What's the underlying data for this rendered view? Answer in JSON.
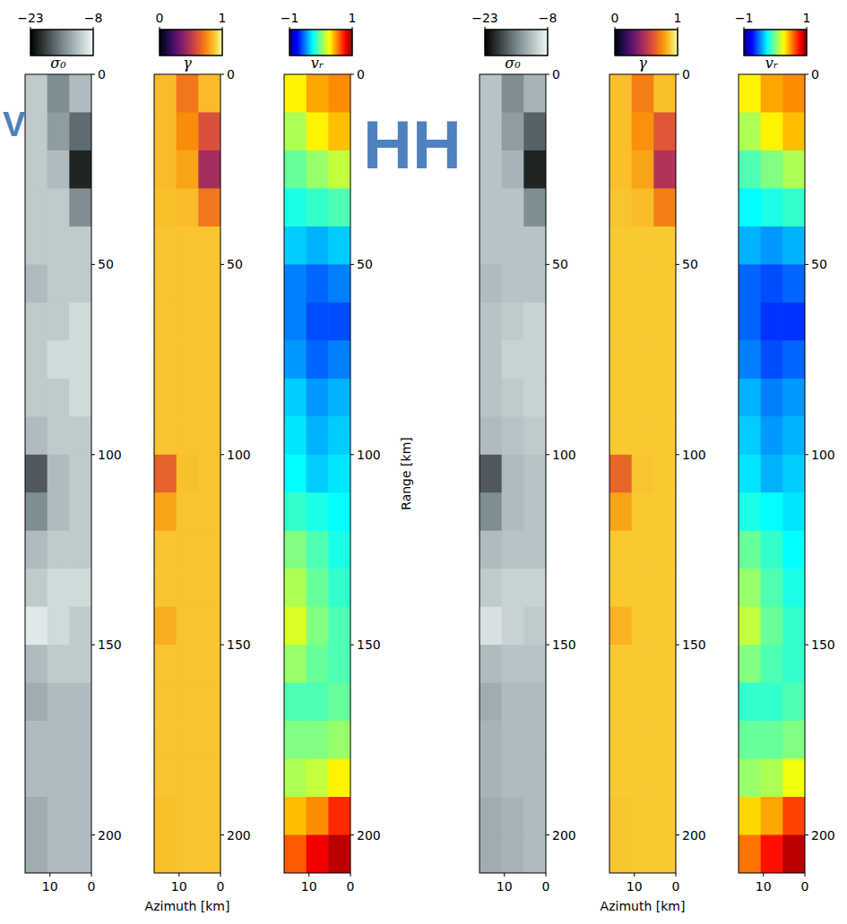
{
  "figure": {
    "groups": [
      {
        "label": "V",
        "x_label": "Azimuth [km]"
      },
      {
        "label": "HH",
        "x_label": "Azimuth [km]"
      }
    ],
    "y_label": "Range [km]"
  },
  "chart_data": [
    {
      "type": "heatmap",
      "title": "σ₀",
      "color": "gray",
      "xlim": [
        16,
        0
      ],
      "ylim": [
        0,
        210
      ],
      "xticks": [
        10,
        0
      ],
      "yticks": [
        0,
        50,
        100,
        150,
        200
      ],
      "colorbar": {
        "range": [
          -23,
          -8
        ],
        "ticks": [
          -23,
          -8
        ]
      },
      "values": [
        [
          -11,
          -15,
          -12
        ],
        [
          -11,
          -14,
          -17
        ],
        [
          -11,
          -12,
          -21
        ],
        [
          -11,
          -11,
          -15
        ],
        [
          -11,
          -11,
          -11
        ],
        [
          -12,
          -11,
          -11
        ],
        [
          -11,
          -11,
          -10
        ],
        [
          -11,
          -10,
          -10
        ],
        [
          -11,
          -11,
          -10
        ],
        [
          -12,
          -11,
          -11
        ],
        [
          -18,
          -12,
          -11
        ],
        [
          -15,
          -12,
          -11
        ],
        [
          -12,
          -11,
          -11
        ],
        [
          -11,
          -10,
          -10
        ],
        [
          -9,
          -10,
          -11
        ],
        [
          -12,
          -11,
          -11
        ],
        [
          -13,
          -12,
          -12
        ],
        [
          -12,
          -12,
          -12
        ],
        [
          -12,
          -12,
          -12
        ],
        [
          -13,
          -12,
          -12
        ],
        [
          -13,
          -12,
          -12
        ]
      ]
    },
    {
      "type": "heatmap",
      "title": "γ",
      "color": "inferno",
      "xlim": [
        16,
        0
      ],
      "ylim": [
        0,
        210
      ],
      "xticks": [
        10,
        0
      ],
      "yticks": [
        0,
        50,
        100,
        150,
        200
      ],
      "colorbar": {
        "range": [
          0,
          1
        ],
        "ticks": [
          0,
          1
        ]
      },
      "values": [
        [
          0.85,
          0.7,
          0.85
        ],
        [
          0.85,
          0.75,
          0.6
        ],
        [
          0.85,
          0.8,
          0.45
        ],
        [
          0.86,
          0.85,
          0.7
        ],
        [
          0.87,
          0.87,
          0.87
        ],
        [
          0.87,
          0.87,
          0.87
        ],
        [
          0.87,
          0.87,
          0.87
        ],
        [
          0.87,
          0.87,
          0.87
        ],
        [
          0.87,
          0.87,
          0.87
        ],
        [
          0.87,
          0.87,
          0.87
        ],
        [
          0.65,
          0.86,
          0.87
        ],
        [
          0.8,
          0.87,
          0.87
        ],
        [
          0.87,
          0.87,
          0.87
        ],
        [
          0.87,
          0.87,
          0.87
        ],
        [
          0.82,
          0.87,
          0.87
        ],
        [
          0.87,
          0.87,
          0.87
        ],
        [
          0.87,
          0.87,
          0.87
        ],
        [
          0.87,
          0.87,
          0.87
        ],
        [
          0.87,
          0.87,
          0.87
        ],
        [
          0.86,
          0.87,
          0.87
        ],
        [
          0.86,
          0.87,
          0.87
        ]
      ]
    },
    {
      "type": "heatmap",
      "title": "vᵣ",
      "color": "jet",
      "xlim": [
        16,
        0
      ],
      "ylim": [
        0,
        210
      ],
      "xticks": [
        10,
        0
      ],
      "yticks": [
        0,
        50,
        100,
        150,
        200
      ],
      "colorbar": {
        "range": [
          -1,
          1
        ],
        "ticks": [
          -1,
          1
        ]
      },
      "values": [
        [
          0.3,
          0.45,
          0.5
        ],
        [
          0.1,
          0.3,
          0.4
        ],
        [
          -0.05,
          0.05,
          0.15
        ],
        [
          -0.2,
          -0.15,
          -0.1
        ],
        [
          -0.35,
          -0.4,
          -0.35
        ],
        [
          -0.5,
          -0.55,
          -0.5
        ],
        [
          -0.5,
          -0.6,
          -0.6
        ],
        [
          -0.45,
          -0.55,
          -0.5
        ],
        [
          -0.35,
          -0.45,
          -0.4
        ],
        [
          -0.3,
          -0.4,
          -0.35
        ],
        [
          -0.25,
          -0.35,
          -0.3
        ],
        [
          -0.15,
          -0.2,
          -0.25
        ],
        [
          0.0,
          -0.1,
          -0.2
        ],
        [
          0.1,
          -0.05,
          -0.15
        ],
        [
          0.2,
          0.0,
          -0.1
        ],
        [
          0.05,
          -0.05,
          -0.1
        ],
        [
          -0.1,
          -0.1,
          -0.05
        ],
        [
          0.0,
          0.0,
          0.05
        ],
        [
          0.1,
          0.15,
          0.3
        ],
        [
          0.4,
          0.5,
          0.7
        ],
        [
          0.6,
          0.8,
          0.9
        ]
      ]
    },
    {
      "type": "heatmap",
      "title": "σ₀",
      "color": "gray",
      "xlim": [
        16,
        0
      ],
      "ylim": [
        0,
        210
      ],
      "xticks": [
        10,
        0
      ],
      "yticks": [
        0,
        50,
        100,
        150,
        200
      ],
      "colorbar": {
        "range": [
          -23,
          -8
        ],
        "ticks": [
          -23,
          -8
        ]
      },
      "values": [
        [
          -11.5,
          -15,
          -12.5
        ],
        [
          -11.5,
          -14,
          -17.5
        ],
        [
          -11.5,
          -12.5,
          -21
        ],
        [
          -11.5,
          -11.5,
          -15
        ],
        [
          -11.5,
          -11.5,
          -11.5
        ],
        [
          -12,
          -11.5,
          -11.5
        ],
        [
          -11.5,
          -11,
          -10.5
        ],
        [
          -11.5,
          -10.5,
          -10.5
        ],
        [
          -11.5,
          -11,
          -10.5
        ],
        [
          -12,
          -11.5,
          -11
        ],
        [
          -18,
          -12,
          -11.5
        ],
        [
          -15,
          -12,
          -11.5
        ],
        [
          -12,
          -11.5,
          -11.5
        ],
        [
          -11,
          -10.5,
          -10.5
        ],
        [
          -9.5,
          -10.5,
          -11
        ],
        [
          -12,
          -11.5,
          -11.5
        ],
        [
          -13,
          -12,
          -12
        ],
        [
          -12.5,
          -12,
          -12
        ],
        [
          -12.5,
          -12,
          -12
        ],
        [
          -13,
          -12.5,
          -12
        ],
        [
          -13,
          -12.5,
          -12
        ]
      ]
    },
    {
      "type": "heatmap",
      "title": "γ",
      "color": "inferno",
      "xlim": [
        16,
        0
      ],
      "ylim": [
        0,
        210
      ],
      "xticks": [
        10,
        0
      ],
      "yticks": [
        0,
        50,
        100,
        150,
        200
      ],
      "colorbar": {
        "range": [
          0,
          1
        ],
        "ticks": [
          0,
          1
        ]
      },
      "values": [
        [
          0.86,
          0.72,
          0.86
        ],
        [
          0.86,
          0.76,
          0.62
        ],
        [
          0.86,
          0.8,
          0.48
        ],
        [
          0.87,
          0.85,
          0.72
        ],
        [
          0.88,
          0.88,
          0.88
        ],
        [
          0.88,
          0.88,
          0.88
        ],
        [
          0.88,
          0.88,
          0.88
        ],
        [
          0.88,
          0.88,
          0.88
        ],
        [
          0.88,
          0.88,
          0.88
        ],
        [
          0.88,
          0.88,
          0.88
        ],
        [
          0.66,
          0.87,
          0.88
        ],
        [
          0.8,
          0.88,
          0.88
        ],
        [
          0.88,
          0.88,
          0.88
        ],
        [
          0.88,
          0.88,
          0.88
        ],
        [
          0.83,
          0.88,
          0.88
        ],
        [
          0.88,
          0.88,
          0.88
        ],
        [
          0.88,
          0.88,
          0.88
        ],
        [
          0.88,
          0.88,
          0.88
        ],
        [
          0.88,
          0.88,
          0.88
        ],
        [
          0.87,
          0.88,
          0.88
        ],
        [
          0.87,
          0.88,
          0.88
        ]
      ]
    },
    {
      "type": "heatmap",
      "title": "vᵣ",
      "color": "jet",
      "xlim": [
        16,
        0
      ],
      "ylim": [
        0,
        210
      ],
      "xticks": [
        10,
        0
      ],
      "yticks": [
        0,
        50,
        100,
        150,
        200
      ],
      "colorbar": {
        "range": [
          -1,
          1
        ],
        "ticks": [
          -1,
          1
        ]
      },
      "values": [
        [
          0.3,
          0.45,
          0.5
        ],
        [
          0.1,
          0.3,
          0.4
        ],
        [
          -0.1,
          0.0,
          0.1
        ],
        [
          -0.25,
          -0.2,
          -0.15
        ],
        [
          -0.4,
          -0.45,
          -0.4
        ],
        [
          -0.55,
          -0.6,
          -0.55
        ],
        [
          -0.55,
          -0.65,
          -0.65
        ],
        [
          -0.5,
          -0.6,
          -0.55
        ],
        [
          -0.4,
          -0.5,
          -0.45
        ],
        [
          -0.35,
          -0.45,
          -0.4
        ],
        [
          -0.3,
          -0.4,
          -0.35
        ],
        [
          -0.2,
          -0.25,
          -0.3
        ],
        [
          -0.05,
          -0.15,
          -0.25
        ],
        [
          0.05,
          -0.1,
          -0.2
        ],
        [
          0.15,
          -0.05,
          -0.15
        ],
        [
          0.0,
          -0.1,
          -0.15
        ],
        [
          -0.15,
          -0.15,
          -0.1
        ],
        [
          -0.05,
          -0.05,
          0.0
        ],
        [
          0.05,
          0.1,
          0.25
        ],
        [
          0.35,
          0.45,
          0.65
        ],
        [
          0.55,
          0.75,
          0.9
        ]
      ]
    }
  ]
}
